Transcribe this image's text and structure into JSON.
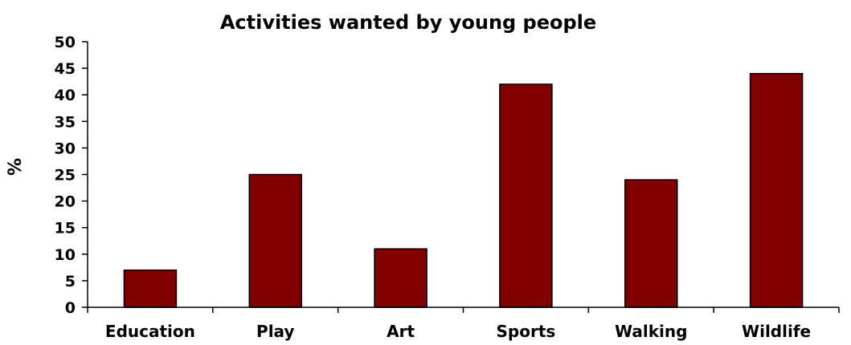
{
  "chart_data": {
    "type": "bar",
    "title": "Activities wanted by young people",
    "xlabel": "",
    "ylabel": "%",
    "categories": [
      "Education",
      "Play",
      "Art",
      "Sports",
      "Walking",
      "Wildlife"
    ],
    "values": [
      7,
      25,
      11,
      42,
      24,
      44
    ],
    "ylim": [
      0,
      50
    ],
    "yticks": [
      0,
      5,
      10,
      15,
      20,
      25,
      30,
      35,
      40,
      45,
      50
    ],
    "grid": false,
    "legend": "none",
    "colors": {
      "bar": "#800000"
    }
  }
}
